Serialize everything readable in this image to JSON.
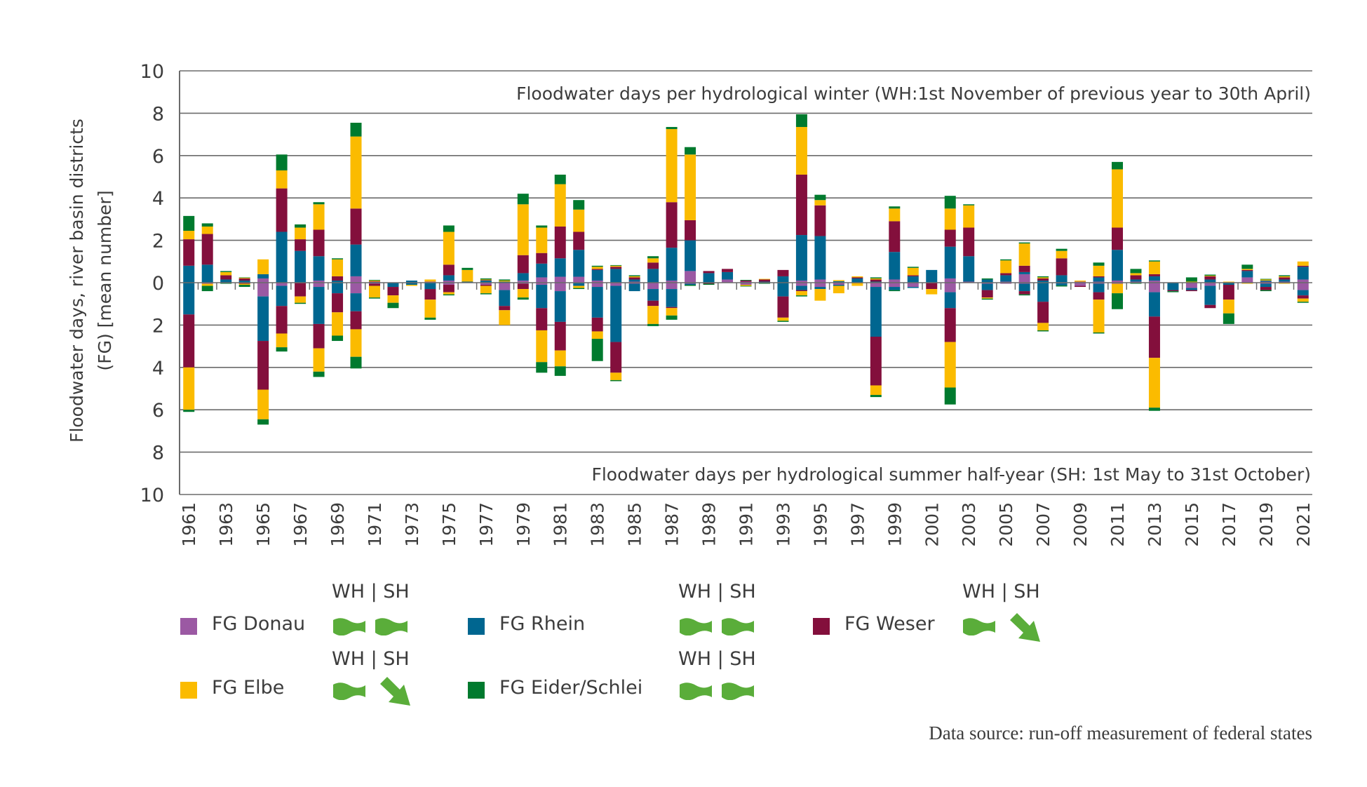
{
  "chart_data": {
    "type": "bar",
    "stacked": true,
    "winter_label": "Floodwater days per hydrological winter (WH:1st November of previous year to 30th April)",
    "summer_label": "Floodwater days per hydrological summer half-year (SH: 1st May to 31st October)",
    "ylabel_line1": "Floodwater days, river basin districts",
    "ylabel_line2": "(FG) [mean number]",
    "ylim": [
      -10,
      10
    ],
    "yticks": [
      "10",
      "8",
      "6",
      "4",
      "2",
      "0",
      "2",
      "4",
      "6",
      "8",
      "10"
    ],
    "grid": true,
    "categories": [
      1961,
      1962,
      1963,
      1964,
      1965,
      1966,
      1967,
      1968,
      1969,
      1970,
      1971,
      1972,
      1973,
      1974,
      1975,
      1976,
      1977,
      1978,
      1979,
      1980,
      1981,
      1982,
      1983,
      1984,
      1985,
      1986,
      1987,
      1988,
      1989,
      1990,
      1991,
      1992,
      1993,
      1994,
      1995,
      1996,
      1997,
      1998,
      1999,
      2000,
      2001,
      2002,
      2003,
      2004,
      2005,
      2006,
      2007,
      2008,
      2009,
      2010,
      2011,
      2012,
      2013,
      2014,
      2015,
      2016,
      2017,
      2018,
      2019,
      2020,
      2021
    ],
    "series": [
      {
        "name": "FG Donau",
        "color": "#9b59a3",
        "winter": [
          0,
          0,
          0,
          0,
          0.2,
          0,
          0,
          0.1,
          0,
          0.3,
          0,
          0,
          0,
          0.05,
          0.1,
          0,
          0,
          0,
          0.1,
          0.25,
          0.28,
          0.28,
          0.1,
          0,
          0.05,
          0,
          0.1,
          0.55,
          0,
          0.15,
          0.05,
          0,
          0,
          0.1,
          0.15,
          0.02,
          0,
          0,
          0.15,
          0,
          0,
          0.2,
          0.05,
          0,
          0.05,
          0.4,
          0,
          0,
          0.05,
          0.05,
          0.1,
          0.05,
          0.1,
          0,
          0,
          0,
          0,
          0.25,
          0.05,
          0.05,
          0.15
        ],
        "summer": [
          0,
          0.05,
          0,
          0,
          0.65,
          0.15,
          0,
          0.2,
          0,
          0.5,
          0.05,
          0,
          0,
          0,
          0.1,
          0,
          0.1,
          0.35,
          0.05,
          0.1,
          0.4,
          0.02,
          0.2,
          0.15,
          0.05,
          0.3,
          0.3,
          0.05,
          0,
          0,
          0.1,
          0,
          0,
          0.15,
          0.2,
          0.1,
          0,
          0.2,
          0.2,
          0.2,
          0,
          0.45,
          0,
          0.05,
          0.05,
          0.05,
          0,
          0.03,
          0.15,
          0.05,
          0.05,
          0,
          0.45,
          0,
          0.25,
          0.15,
          0,
          0,
          0.05,
          0,
          0.35
        ]
      },
      {
        "name": "FG Rhein",
        "color": "#006690",
        "winter": [
          0.8,
          0.85,
          0.15,
          0.1,
          0.2,
          2.4,
          1.5,
          1.15,
          0.1,
          1.5,
          0.03,
          0,
          0.1,
          0,
          0.25,
          0.05,
          0.1,
          0.05,
          0.35,
          0.65,
          0.87,
          1.27,
          0.5,
          0.65,
          0.1,
          0.65,
          1.55,
          1.45,
          0.45,
          0.35,
          0,
          0.05,
          0.3,
          2.15,
          2.05,
          0.05,
          0.2,
          0.05,
          1.3,
          0.3,
          0.6,
          1.5,
          1.2,
          0.15,
          0.3,
          0.1,
          0.1,
          0.35,
          0,
          0.2,
          1.45,
          0.1,
          0.2,
          0,
          0,
          0.15,
          0,
          0.3,
          0.05,
          0.1,
          0.6
        ],
        "summer": [
          1.5,
          0,
          0,
          0,
          2.1,
          0.95,
          0,
          1.75,
          0.5,
          0.85,
          0,
          0.2,
          0.1,
          0.3,
          0,
          0,
          0,
          0.75,
          0,
          1.1,
          1.45,
          0.13,
          1.45,
          2.65,
          0.35,
          0.55,
          0.85,
          0.05,
          0,
          0,
          0,
          0,
          0.65,
          0.2,
          0.1,
          0.05,
          0,
          2.35,
          0.15,
          0.05,
          0,
          0.75,
          0,
          0.3,
          0,
          0.35,
          0.9,
          0.1,
          0,
          0.4,
          0,
          0,
          1.15,
          0.35,
          0.1,
          0.9,
          0.1,
          0,
          0.15,
          0,
          0.25
        ]
      },
      {
        "name": "FG Weser",
        "color": "#830f3c",
        "winter": [
          1.25,
          1.45,
          0.2,
          0.1,
          0,
          2.05,
          0.55,
          1.25,
          0.2,
          1.7,
          0.03,
          0,
          0,
          0,
          0.5,
          0,
          0.02,
          0,
          0.85,
          0.5,
          1.5,
          0.85,
          0.05,
          0.1,
          0.1,
          0.3,
          2.15,
          0.95,
          0.1,
          0.15,
          0.05,
          0.1,
          0.3,
          2.85,
          1.45,
          0,
          0.05,
          0.1,
          1.45,
          0.05,
          0,
          0.8,
          1.35,
          0,
          0.1,
          0.3,
          0.1,
          0.8,
          0,
          0.05,
          1.05,
          0.2,
          0.1,
          0,
          0,
          0.15,
          0,
          0.05,
          0,
          0.1,
          0.05
        ],
        "summer": [
          2.5,
          0,
          0,
          0.05,
          2.3,
          1.3,
          0.65,
          1.15,
          0.9,
          0.85,
          0.1,
          0.4,
          0,
          0.5,
          0.35,
          0,
          0.05,
          0.2,
          0.25,
          1.05,
          1.35,
          0,
          0.65,
          1.45,
          0,
          0.25,
          0.05,
          0,
          0.05,
          0,
          0,
          0,
          1.0,
          0.05,
          0,
          0,
          0,
          2.3,
          0,
          0,
          0.3,
          1.6,
          0,
          0.35,
          0,
          0.15,
          1.0,
          0,
          0.05,
          0.35,
          0,
          0,
          1.95,
          0.05,
          0.05,
          0.15,
          0.7,
          0,
          0.15,
          0,
          0.15
        ]
      },
      {
        "name": "FG Elbe",
        "color": "#fbbb00",
        "winter": [
          0.4,
          0.35,
          0.15,
          0.03,
          0.7,
          0.85,
          0.55,
          1.2,
          0.8,
          3.4,
          0.04,
          0,
          0,
          0.1,
          1.55,
          0.55,
          0.03,
          0.05,
          2.4,
          1.2,
          2.0,
          1.05,
          0.1,
          0.05,
          0.05,
          0.2,
          3.45,
          3.1,
          0,
          0,
          0,
          0.03,
          0,
          2.25,
          0.25,
          0.05,
          0.05,
          0.05,
          0.6,
          0.35,
          0,
          1.0,
          1.05,
          0,
          0.6,
          1.05,
          0.05,
          0.35,
          0.05,
          0.5,
          2.75,
          0.1,
          0.6,
          0,
          0.05,
          0.03,
          0.05,
          0.05,
          0.05,
          0.05,
          0.2
        ],
        "summer": [
          2.0,
          0.1,
          0,
          0.05,
          1.4,
          0.65,
          0.3,
          1.1,
          1.1,
          1.3,
          0.55,
          0.35,
          0.05,
          0.85,
          0.1,
          0,
          0.35,
          0.7,
          0.4,
          1.5,
          0.75,
          0.1,
          0.35,
          0.35,
          0,
          0.85,
          0.35,
          0,
          0,
          0,
          0.05,
          0,
          0.15,
          0.2,
          0.55,
          0.35,
          0.15,
          0.45,
          0,
          0,
          0.25,
          2.15,
          0,
          0.05,
          0,
          0,
          0.35,
          0,
          0,
          1.55,
          0.45,
          0,
          2.35,
          0,
          0,
          0,
          0.65,
          0.05,
          0,
          0.05,
          0.15
        ]
      },
      {
        "name": "FG Eider/Schlei",
        "color": "#007a2e",
        "winter": [
          0.7,
          0.15,
          0.05,
          0.02,
          0,
          0.75,
          0.15,
          0.1,
          0.05,
          0.65,
          0.03,
          0,
          0,
          0,
          0.3,
          0.1,
          0.05,
          0.05,
          0.5,
          0.1,
          0.45,
          0.45,
          0.05,
          0.03,
          0.05,
          0.1,
          0.1,
          0.35,
          0,
          0,
          0.03,
          0,
          0,
          0.6,
          0.25,
          0,
          0,
          0.05,
          0.1,
          0.05,
          0,
          0.6,
          0.05,
          0.05,
          0.05,
          0.05,
          0.05,
          0.1,
          0,
          0.15,
          0.35,
          0.2,
          0.05,
          0,
          0.2,
          0.05,
          0,
          0.2,
          0.03,
          0.05,
          0
        ],
        "summer": [
          0.1,
          0.25,
          0.05,
          0.1,
          0.25,
          0.2,
          0.05,
          0.25,
          0.25,
          0.55,
          0.05,
          0.25,
          0,
          0.1,
          0.05,
          0,
          0.05,
          0,
          0.1,
          0.5,
          0.45,
          0.05,
          1.05,
          0.05,
          0,
          0.1,
          0.2,
          0.05,
          0.05,
          0,
          0.03,
          0.05,
          0.05,
          0.05,
          0,
          0,
          0,
          0.1,
          0.05,
          0,
          0,
          0.8,
          0,
          0.05,
          0,
          0.05,
          0.05,
          0.05,
          0,
          0.05,
          0.75,
          0.05,
          0.15,
          0.05,
          0,
          0,
          0.5,
          0,
          0.05,
          0,
          0.05
        ]
      }
    ]
  },
  "legend": {
    "header": "WH | SH",
    "items": [
      {
        "label": "FG Donau",
        "color": "#9b59a3",
        "wh_icon": "no-trend",
        "sh_icon": "no-trend"
      },
      {
        "label": "FG Rhein",
        "color": "#006690",
        "wh_icon": "no-trend",
        "sh_icon": "no-trend"
      },
      {
        "label": "FG Weser",
        "color": "#830f3c",
        "wh_icon": "no-trend",
        "sh_icon": "decreasing-trend"
      },
      {
        "label": "FG Elbe",
        "color": "#fbbb00",
        "wh_icon": "no-trend",
        "sh_icon": "decreasing-trend"
      },
      {
        "label": "FG Eider/Schlei",
        "color": "#007a2e",
        "wh_icon": "no-trend",
        "sh_icon": "no-trend"
      }
    ],
    "trend_icon_color": "#5aad3a"
  },
  "source": "Data source: run-off measurement of federal states"
}
